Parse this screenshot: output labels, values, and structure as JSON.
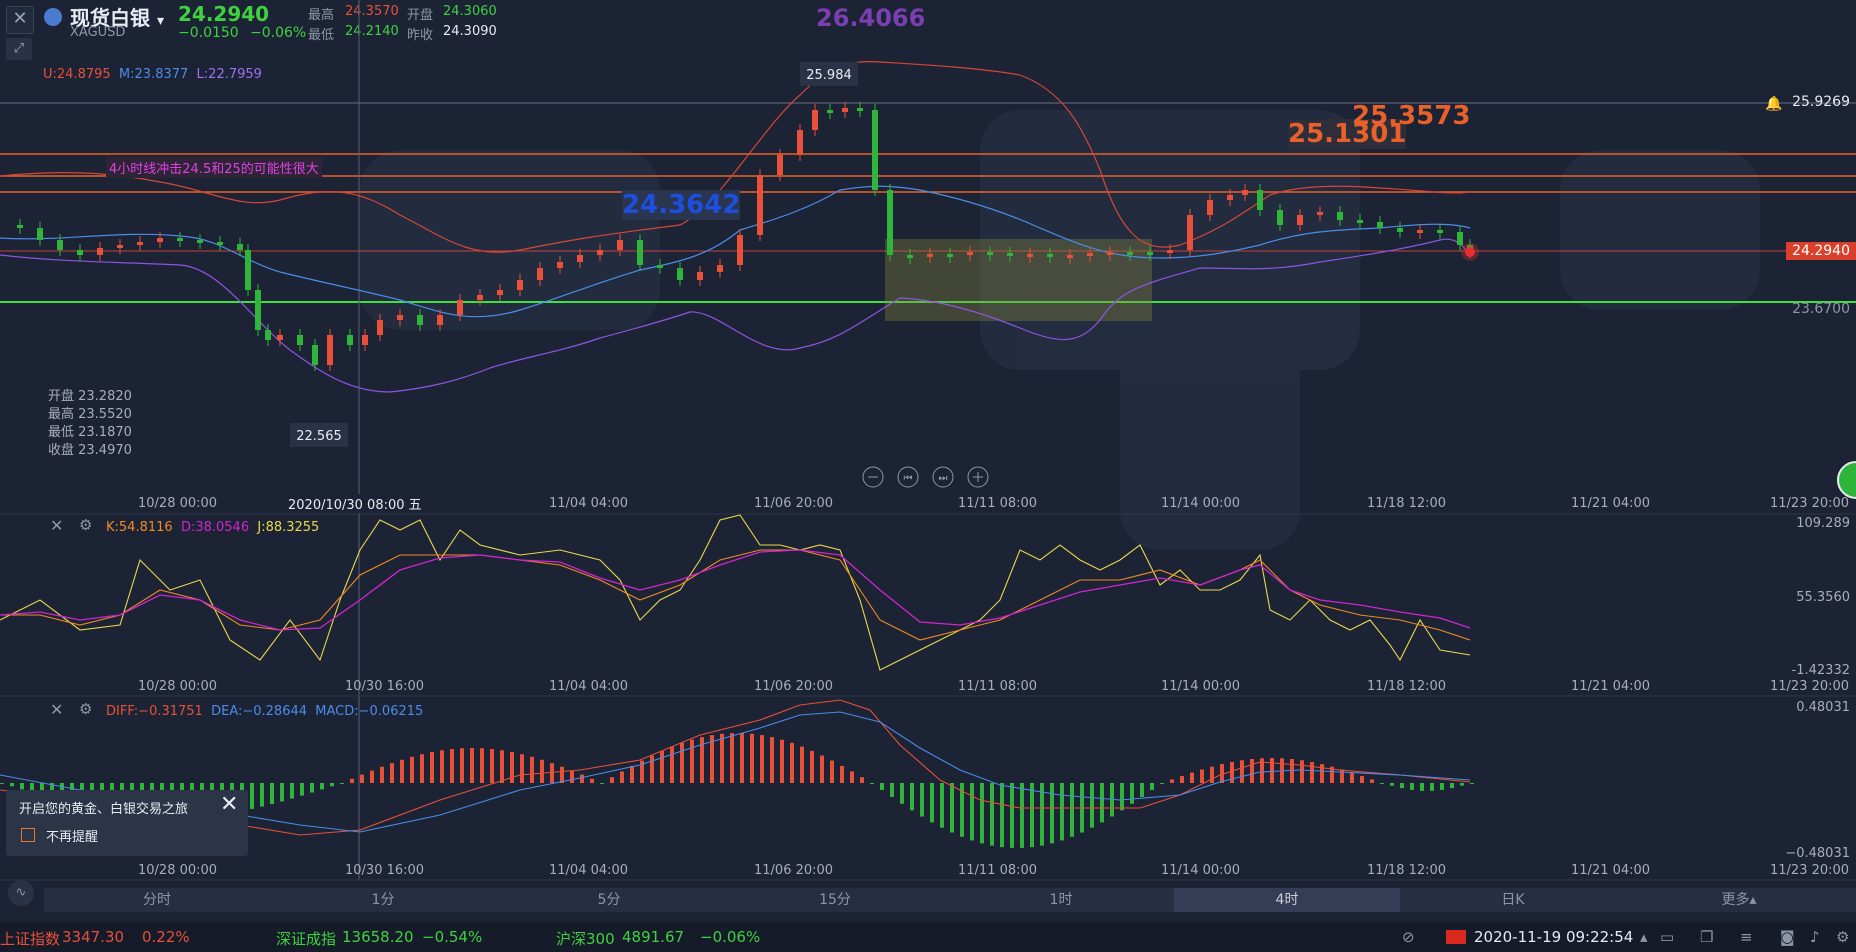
{
  "header": {
    "close_label": "✕",
    "expand_label": "⤢",
    "symbol_name": "现货白银",
    "symbol_code": "XAGUSD",
    "dropdown_glyph": "▾",
    "price": "24.2940",
    "change": "−0.0150",
    "change_pct": "−0.06%",
    "high_label": "最高",
    "high": "24.3570",
    "open_label": "开盘",
    "open": "24.3060",
    "low_label": "最低",
    "low": "24.2140",
    "prev_close_label": "昨收",
    "prev_close": "24.3090"
  },
  "boll": {
    "u": "U:24.8795",
    "m": "M:23.8377",
    "l": "L:22.7959"
  },
  "annotations": {
    "note_text": "4小时线冲击24.5和25的可能性很大",
    "purple_price": "26.4066",
    "blue_price": "24.3642",
    "red_price_1": "25.1301",
    "red_price_2": "25.3573",
    "peak_label": "25.984",
    "trough_label": "22.565"
  },
  "right_axis": {
    "alert_price": "25.9269",
    "current_price": "24.2940",
    "support_price": "23.6700"
  },
  "ohlc_box": {
    "open": "开盘 23.2820",
    "high": "最高 23.5520",
    "low": "最低 23.1870",
    "close": "收盘 23.4970"
  },
  "time_axis": [
    "10/28 00:00",
    "11/04 04:00",
    "11/06 20:00",
    "11/11 08:00",
    "11/14 00:00",
    "11/18 12:00",
    "11/21 04:00",
    "11/23 20:00"
  ],
  "crosshair_time": "2020/10/30 08:00 五",
  "kdj_crosshair_time": "10/30 16:00",
  "kdj": {
    "k": "K:54.8116",
    "d": "D:38.0546",
    "j": "J:88.3255",
    "axis_top": "109.289",
    "axis_mid": "55.3560",
    "axis_bot": "-1.42332"
  },
  "macd": {
    "diff": "DIFF:−0.31751",
    "dea": "DEA:−0.28644",
    "macd": "MACD:−0.06215",
    "axis_top": "0.48031",
    "axis_bot": "−0.48031"
  },
  "notice": {
    "title": "开启您的黄金、白银交易之旅",
    "checkbox_label": "不再提醒"
  },
  "timeframes": [
    "分时",
    "1分",
    "5分",
    "15分",
    "1时",
    "4时",
    "日K",
    "更多▴"
  ],
  "active_timeframe": "4时",
  "ticker": {
    "sh_name": "上证指数",
    "sh_val": "3347.30",
    "sh_pct": "0.22%",
    "sz_name": "深证成指",
    "sz_val": "13658.20",
    "sz_pct": "−0.54%",
    "hs_name": "沪深300",
    "hs_val": "4891.67",
    "hs_pct": "−0.06%",
    "datetime": "2020-11-19 09:22:54"
  },
  "colors": {
    "up": "#e8503a",
    "down": "#2fb53a",
    "boll_mid": "#4a8ce8",
    "boll_low": "#8d55e0",
    "k": "#f08a24",
    "d": "#d025d0",
    "j": "#e8d84a"
  }
}
